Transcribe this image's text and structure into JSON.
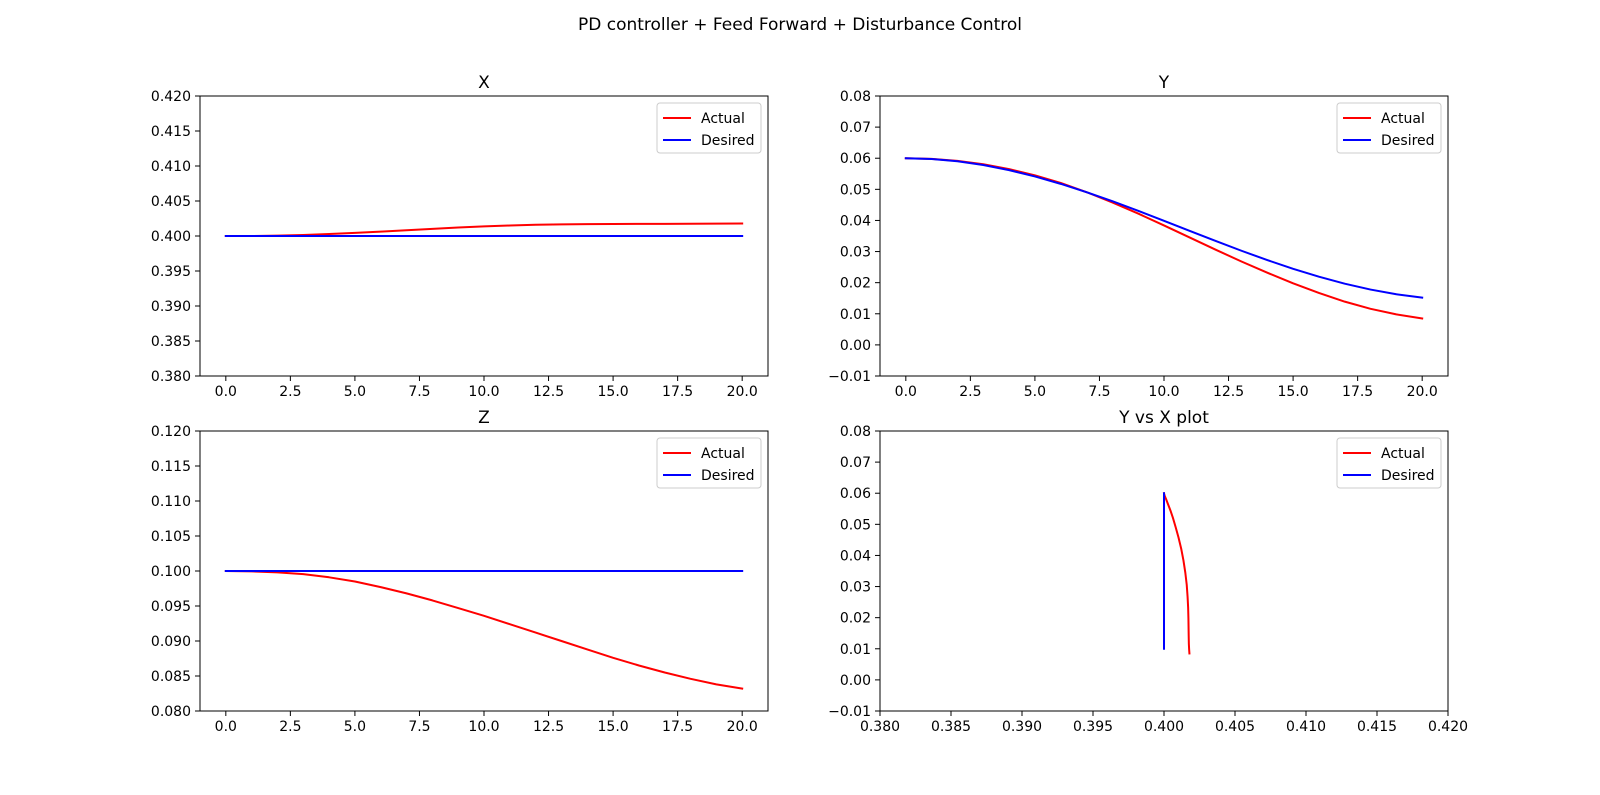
{
  "figure": {
    "title": "PD controller + Feed Forward + Disturbance Control"
  },
  "chart_data": [
    {
      "type": "line",
      "title": "X",
      "xlabel": "",
      "ylabel": "",
      "xlim": [
        -1.0,
        21.0
      ],
      "ylim": [
        0.38,
        0.42
      ],
      "xticks": [
        "0.0",
        "2.5",
        "5.0",
        "7.5",
        "10.0",
        "12.5",
        "15.0",
        "17.5",
        "20.0"
      ],
      "yticks": [
        "0.380",
        "0.385",
        "0.390",
        "0.395",
        "0.400",
        "0.405",
        "0.410",
        "0.415",
        "0.420"
      ],
      "legend": "top-right",
      "grid": false,
      "series": [
        {
          "name": "Actual",
          "color": "#ff0000",
          "x": [
            0,
            1,
            2,
            3,
            4,
            5,
            6,
            7,
            8,
            9,
            10,
            11,
            12,
            13,
            14,
            15,
            16,
            17,
            18,
            19,
            20
          ],
          "y": [
            0.4,
            0.4,
            0.40005,
            0.40015,
            0.40028,
            0.40045,
            0.40063,
            0.40082,
            0.40102,
            0.40121,
            0.40137,
            0.4015,
            0.4016,
            0.40166,
            0.4017,
            0.40172,
            0.40173,
            0.40174,
            0.40175,
            0.40177,
            0.40179
          ]
        },
        {
          "name": "Desired",
          "color": "#0000ff",
          "x": [
            0,
            20
          ],
          "y": [
            0.4,
            0.4
          ]
        }
      ]
    },
    {
      "type": "line",
      "title": "Y",
      "xlabel": "",
      "ylabel": "",
      "xlim": [
        -1.0,
        21.0
      ],
      "ylim": [
        -0.01,
        0.08
      ],
      "xticks": [
        "0.0",
        "2.5",
        "5.0",
        "7.5",
        "10.0",
        "12.5",
        "15.0",
        "17.5",
        "20.0"
      ],
      "yticks": [
        "−0.01",
        "0.00",
        "0.01",
        "0.02",
        "0.03",
        "0.04",
        "0.05",
        "0.06",
        "0.07",
        "0.08"
      ],
      "legend": "top-right",
      "grid": false,
      "series": [
        {
          "name": "Actual",
          "color": "#ff0000",
          "x": [
            0,
            1,
            2,
            3,
            4,
            5,
            6,
            7,
            8,
            9,
            10,
            11,
            12,
            13,
            14,
            15,
            16,
            17,
            18,
            19,
            20
          ],
          "y": [
            0.06,
            0.0598,
            0.05915,
            0.05805,
            0.0565,
            0.0545,
            0.05205,
            0.0491,
            0.0458,
            0.0422,
            0.0384,
            0.0345,
            0.0306,
            0.0268,
            0.0232,
            0.0198,
            0.0167,
            0.0139,
            0.0116,
            0.0098,
            0.0085
          ]
        },
        {
          "name": "Desired",
          "color": "#0000ff",
          "x": [
            0,
            1,
            2,
            3,
            4,
            5,
            6,
            7,
            8,
            9,
            10,
            11,
            12,
            13,
            14,
            15,
            16,
            17,
            18,
            19,
            20
          ],
          "y": [
            0.06,
            0.05975,
            0.05902,
            0.05782,
            0.05618,
            0.05414,
            0.05176,
            0.04909,
            0.04618,
            0.04309,
            0.03989,
            0.03664,
            0.03341,
            0.03026,
            0.02726,
            0.02446,
            0.02191,
            0.01967,
            0.01778,
            0.01628,
            0.0152
          ]
        }
      ]
    },
    {
      "type": "line",
      "title": "Z",
      "xlabel": "",
      "ylabel": "",
      "xlim": [
        -1.0,
        21.0
      ],
      "ylim": [
        0.08,
        0.12
      ],
      "xticks": [
        "0.0",
        "2.5",
        "5.0",
        "7.5",
        "10.0",
        "12.5",
        "15.0",
        "17.5",
        "20.0"
      ],
      "yticks": [
        "0.080",
        "0.085",
        "0.090",
        "0.095",
        "0.100",
        "0.105",
        "0.110",
        "0.115",
        "0.120"
      ],
      "legend": "top-right",
      "grid": false,
      "series": [
        {
          "name": "Actual",
          "color": "#ff0000",
          "x": [
            0,
            1,
            2,
            3,
            4,
            5,
            6,
            7,
            8,
            9,
            10,
            11,
            12,
            13,
            14,
            15,
            16,
            17,
            18,
            19,
            20
          ],
          "y": [
            0.1,
            0.09995,
            0.0998,
            0.09955,
            0.0991,
            0.0985,
            0.0977,
            0.0968,
            0.0958,
            0.0947,
            0.0936,
            0.0924,
            0.0912,
            0.09,
            0.0888,
            0.0876,
            0.0865,
            0.0855,
            0.0846,
            0.0838,
            0.0832
          ]
        },
        {
          "name": "Desired",
          "color": "#0000ff",
          "x": [
            0,
            20
          ],
          "y": [
            0.1,
            0.1
          ]
        }
      ]
    },
    {
      "type": "line",
      "title": "Y vs X plot",
      "xlabel": "",
      "ylabel": "",
      "xlim": [
        0.38,
        0.42
      ],
      "ylim": [
        -0.01,
        0.08
      ],
      "xticks": [
        "0.380",
        "0.385",
        "0.390",
        "0.395",
        "0.400",
        "0.405",
        "0.410",
        "0.415",
        "0.420"
      ],
      "yticks": [
        "−0.01",
        "0.00",
        "0.01",
        "0.02",
        "0.03",
        "0.04",
        "0.05",
        "0.06",
        "0.07",
        "0.08"
      ],
      "legend": "top-right",
      "grid": false,
      "series": [
        {
          "name": "Actual",
          "color": "#ff0000",
          "x": [
            0.4,
            0.40005,
            0.40015,
            0.40028,
            0.40045,
            0.40063,
            0.40082,
            0.40102,
            0.40121,
            0.40137,
            0.4015,
            0.4016,
            0.40166,
            0.4017,
            0.40172,
            0.40173,
            0.40174,
            0.40175,
            0.40177,
            0.40179
          ],
          "y": [
            0.06,
            0.05915,
            0.05805,
            0.0565,
            0.0545,
            0.05205,
            0.0491,
            0.0458,
            0.0422,
            0.0384,
            0.0345,
            0.0306,
            0.0268,
            0.0232,
            0.0198,
            0.0167,
            0.0139,
            0.0116,
            0.0098,
            0.0085
          ]
        },
        {
          "name": "Desired",
          "color": "#0000ff",
          "x": [
            0.4,
            0.4
          ],
          "y": [
            0.06,
            0.01
          ]
        }
      ]
    }
  ]
}
